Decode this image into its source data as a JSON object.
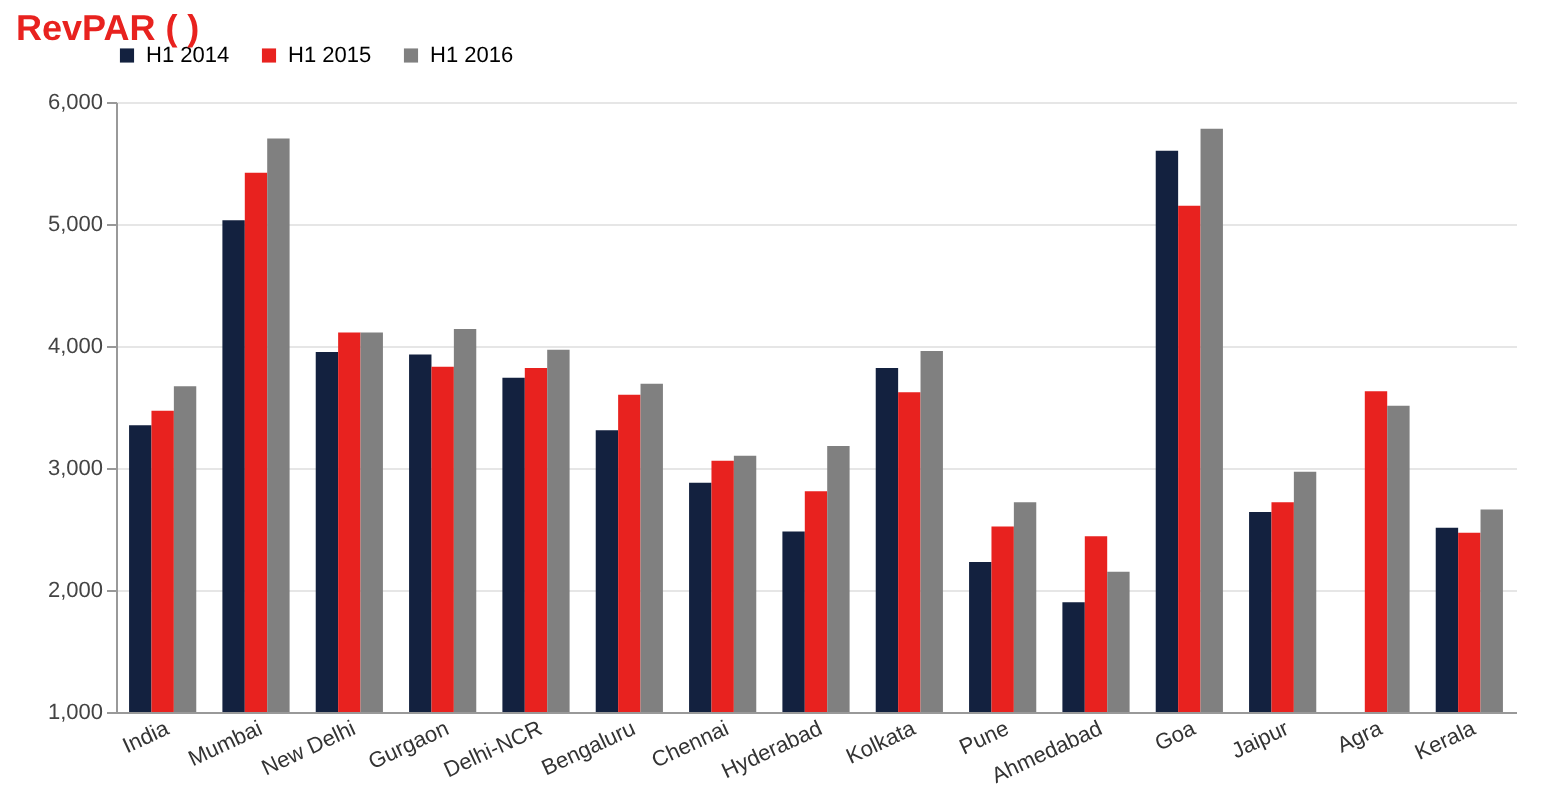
{
  "chart_data": {
    "type": "bar",
    "title": "RevPAR ( )",
    "categories": [
      "India",
      "Mumbai",
      "New Delhi",
      "Gurgaon",
      "Delhi-NCR",
      "Bengaluru",
      "Chennai",
      "Hyderabad",
      "Kolkata",
      "Pune",
      "Ahmedabad",
      "Goa",
      "Jaipur",
      "Agra",
      "Kerala"
    ],
    "series": [
      {
        "name": "H1 2014",
        "color": "#13213f",
        "values": [
          3350,
          5030,
          3950,
          3930,
          3740,
          3310,
          2880,
          2480,
          3820,
          2230,
          1900,
          5600,
          2640,
          null,
          2510
        ]
      },
      {
        "name": "H1 2015",
        "color": "#e8221f",
        "values": [
          3470,
          5420,
          4110,
          3830,
          3820,
          3600,
          3060,
          2810,
          3620,
          2520,
          2440,
          5150,
          2720,
          3630,
          2470
        ]
      },
      {
        "name": "H1 2016",
        "color": "#808080",
        "values": [
          3670,
          5700,
          4110,
          4140,
          3970,
          3690,
          3100,
          3180,
          3960,
          2720,
          2150,
          5780,
          2970,
          3510,
          2660
        ]
      }
    ],
    "ylim": [
      1000,
      6000
    ],
    "yticks": [
      {
        "value": 1000,
        "label": "1,000"
      },
      {
        "value": 2000,
        "label": "2,000"
      },
      {
        "value": 3000,
        "label": "3,000"
      },
      {
        "value": 4000,
        "label": "4,000"
      },
      {
        "value": 5000,
        "label": "5,000"
      },
      {
        "value": 6000,
        "label": "6,000"
      }
    ],
    "grid": "y",
    "legend": "top"
  }
}
